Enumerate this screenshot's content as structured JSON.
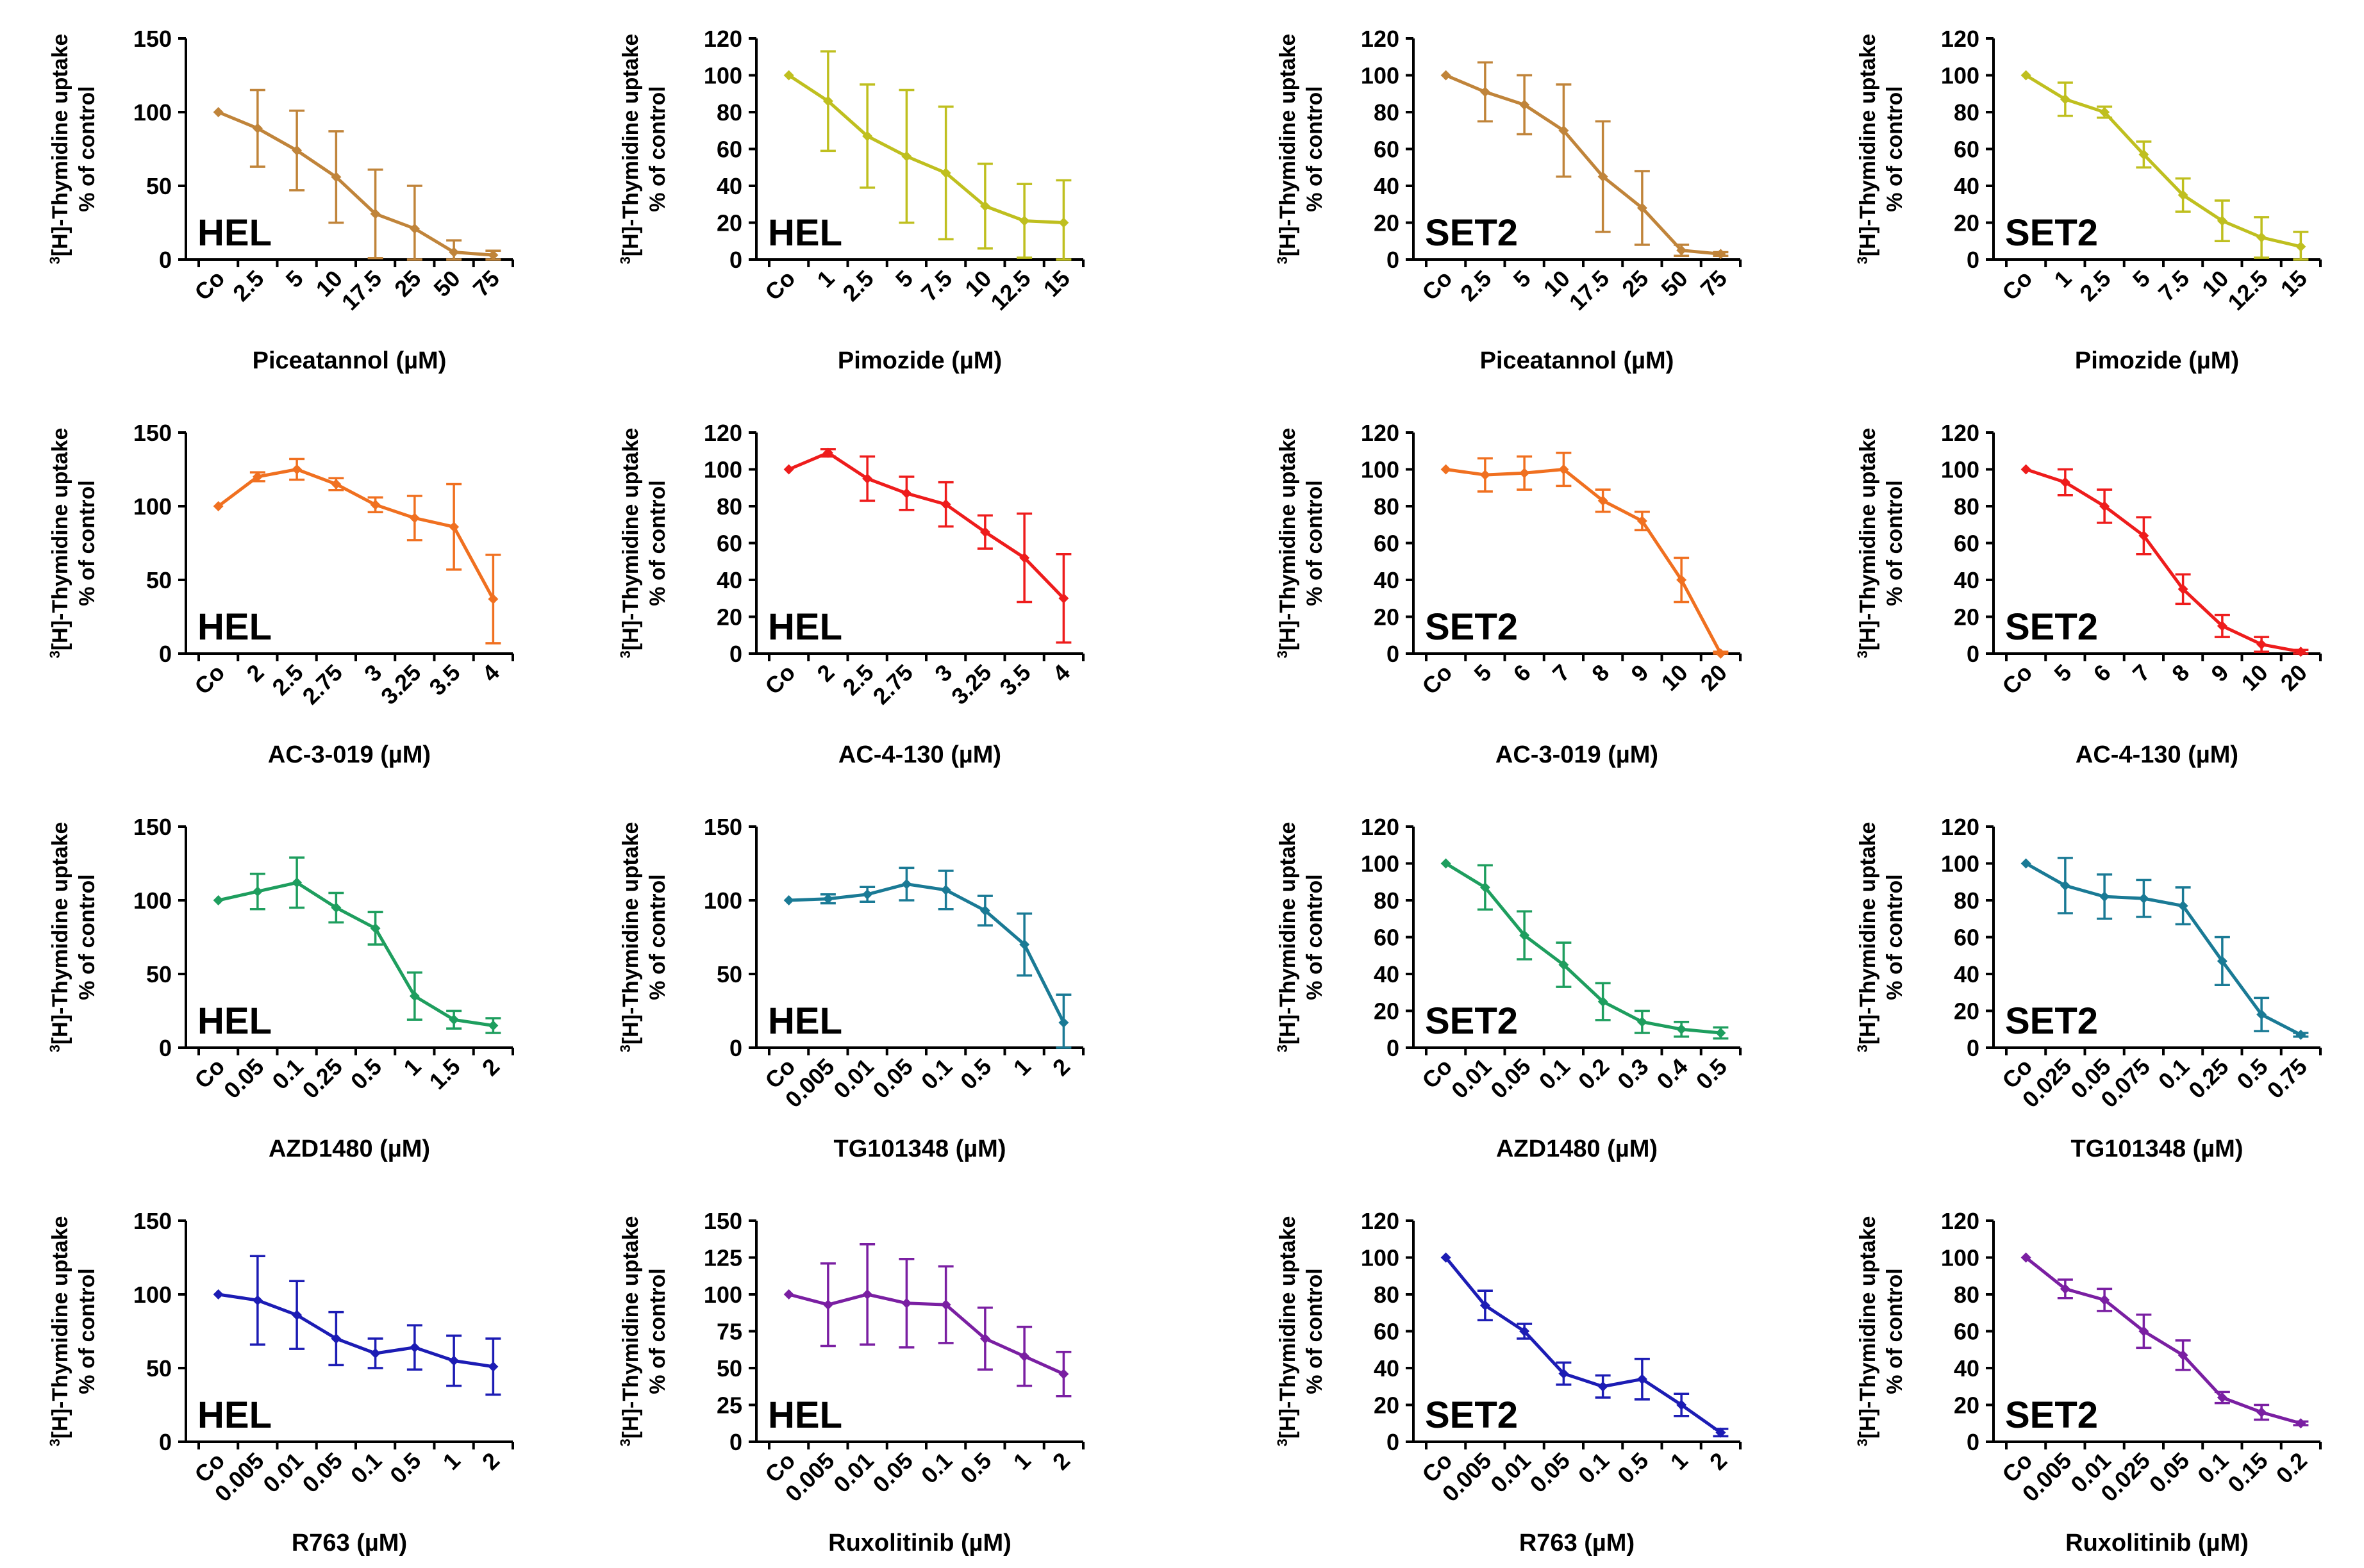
{
  "figure": {
    "ylabel_line1": "[H]-Thymidine uptake",
    "ylabel_sup": "3",
    "ylabel_line2": "% of control"
  },
  "chart_data": [
    {
      "type": "line",
      "cell": "HEL",
      "color": "#C0843A",
      "title": "",
      "xlabel": "Piceatannol (µM)",
      "ylabel": "³[H]-Thymidine uptake % of control",
      "categories": [
        "Co",
        "2.5",
        "5",
        "10",
        "17.5",
        "25",
        "50",
        "75"
      ],
      "values": [
        100,
        89,
        74,
        56,
        31,
        21,
        5,
        3
      ],
      "errors": [
        0,
        26,
        27,
        31,
        30,
        29,
        8,
        3
      ],
      "ylim": [
        0,
        150
      ],
      "yticks": [
        0,
        50,
        100,
        150
      ]
    },
    {
      "type": "line",
      "cell": "HEL",
      "color": "#BFBF1F",
      "title": "",
      "xlabel": "Pimozide (µM)",
      "ylabel": "³[H]-Thymidine uptake % of control",
      "categories": [
        "Co",
        "1",
        "2.5",
        "5",
        "7.5",
        "10",
        "12.5",
        "15"
      ],
      "values": [
        100,
        86,
        67,
        56,
        47,
        29,
        21,
        20
      ],
      "errors": [
        0,
        27,
        28,
        36,
        36,
        23,
        20,
        23
      ],
      "ylim": [
        0,
        120
      ],
      "yticks": [
        0,
        20,
        40,
        60,
        80,
        100,
        120
      ]
    },
    {
      "type": "line",
      "cell": "SET2",
      "color": "#C0843A",
      "title": "",
      "xlabel": "Piceatannol (µM)",
      "ylabel": "³[H]-Thymidine uptake % of control",
      "categories": [
        "Co",
        "2.5",
        "5",
        "10",
        "17.5",
        "25",
        "50",
        "75"
      ],
      "values": [
        100,
        91,
        84,
        70,
        45,
        28,
        5,
        3
      ],
      "errors": [
        0,
        16,
        16,
        25,
        30,
        20,
        3,
        1
      ],
      "ylim": [
        0,
        120
      ],
      "yticks": [
        0,
        20,
        40,
        60,
        80,
        100,
        120
      ]
    },
    {
      "type": "line",
      "cell": "SET2",
      "color": "#BFBF1F",
      "title": "",
      "xlabel": "Pimozide (µM)",
      "ylabel": "³[H]-Thymidine uptake % of control",
      "categories": [
        "Co",
        "1",
        "2.5",
        "5",
        "7.5",
        "10",
        "12.5",
        "15"
      ],
      "values": [
        100,
        87,
        80,
        57,
        35,
        21,
        12,
        7
      ],
      "errors": [
        0,
        9,
        3,
        7,
        9,
        11,
        11,
        8
      ],
      "ylim": [
        0,
        120
      ],
      "yticks": [
        0,
        20,
        40,
        60,
        80,
        100,
        120
      ]
    },
    {
      "type": "line",
      "cell": "HEL",
      "color": "#F07020",
      "title": "",
      "xlabel": "AC-3-019 (µM)",
      "ylabel": "³[H]-Thymidine uptake % of control",
      "categories": [
        "Co",
        "2",
        "2.5",
        "2.75",
        "3",
        "3.25",
        "3.5",
        "4"
      ],
      "values": [
        100,
        120,
        125,
        115,
        101,
        92,
        86,
        37
      ],
      "errors": [
        0,
        3,
        7,
        4,
        5,
        15,
        29,
        30
      ],
      "ylim": [
        0,
        150
      ],
      "yticks": [
        0,
        50,
        100,
        150
      ]
    },
    {
      "type": "line",
      "cell": "HEL",
      "color": "#EE1C1C",
      "title": "",
      "xlabel": "AC-4-130 (µM)",
      "ylabel": "³[H]-Thymidine uptake % of control",
      "categories": [
        "Co",
        "2",
        "2.5",
        "2.75",
        "3",
        "3.25",
        "3.5",
        "4"
      ],
      "values": [
        100,
        109,
        95,
        87,
        81,
        66,
        52,
        30
      ],
      "errors": [
        0,
        2,
        12,
        9,
        12,
        9,
        24,
        24
      ],
      "ylim": [
        0,
        120
      ],
      "yticks": [
        0,
        20,
        40,
        60,
        80,
        100,
        120
      ]
    },
    {
      "type": "line",
      "cell": "SET2",
      "color": "#F07020",
      "title": "",
      "xlabel": "AC-3-019 (µM)",
      "ylabel": "³[H]-Thymidine uptake % of control",
      "categories": [
        "Co",
        "5",
        "6",
        "7",
        "8",
        "9",
        "10",
        "20"
      ],
      "values": [
        100,
        97,
        98,
        100,
        83,
        72,
        40,
        0
      ],
      "errors": [
        0,
        9,
        9,
        9,
        6,
        5,
        12,
        1
      ],
      "ylim": [
        0,
        120
      ],
      "yticks": [
        0,
        20,
        40,
        60,
        80,
        100,
        120
      ]
    },
    {
      "type": "line",
      "cell": "SET2",
      "color": "#EE1C1C",
      "title": "",
      "xlabel": "AC-4-130 (µM)",
      "ylabel": "³[H]-Thymidine uptake % of control",
      "categories": [
        "Co",
        "5",
        "6",
        "7",
        "8",
        "9",
        "10",
        "20"
      ],
      "values": [
        100,
        93,
        80,
        64,
        35,
        15,
        5,
        1
      ],
      "errors": [
        0,
        7,
        9,
        10,
        8,
        6,
        4,
        1
      ],
      "ylim": [
        0,
        120
      ],
      "yticks": [
        0,
        20,
        40,
        60,
        80,
        100,
        120
      ]
    },
    {
      "type": "line",
      "cell": "HEL",
      "color": "#1E9E5E",
      "title": "",
      "xlabel": "AZD1480 (µM)",
      "ylabel": "³[H]-Thymidine uptake % of control",
      "categories": [
        "Co",
        "0.05",
        "0.1",
        "0.25",
        "0.5",
        "1",
        "1.5",
        "2"
      ],
      "values": [
        100,
        106,
        112,
        95,
        81,
        35,
        19,
        15
      ],
      "errors": [
        0,
        12,
        17,
        10,
        11,
        16,
        6,
        5
      ],
      "ylim": [
        0,
        150
      ],
      "yticks": [
        0,
        50,
        100,
        150
      ]
    },
    {
      "type": "line",
      "cell": "HEL",
      "color": "#1A7A95",
      "title": "",
      "xlabel": "TG101348 (µM)",
      "ylabel": "³[H]-Thymidine uptake % of control",
      "categories": [
        "Co",
        "0.005",
        "0.01",
        "0.05",
        "0.1",
        "0.5",
        "1",
        "2"
      ],
      "values": [
        100,
        101,
        104,
        111,
        107,
        93,
        70,
        17
      ],
      "errors": [
        0,
        3,
        5,
        11,
        13,
        10,
        21,
        19
      ],
      "ylim": [
        0,
        150
      ],
      "yticks": [
        0,
        50,
        100,
        150
      ]
    },
    {
      "type": "line",
      "cell": "SET2",
      "color": "#1E9E5E",
      "title": "",
      "xlabel": "AZD1480 (µM)",
      "ylabel": "³[H]-Thymidine uptake % of control",
      "categories": [
        "Co",
        "0.01",
        "0.05",
        "0.1",
        "0.2",
        "0.3",
        "0.4",
        "0.5"
      ],
      "values": [
        100,
        87,
        61,
        45,
        25,
        14,
        10,
        8
      ],
      "errors": [
        0,
        12,
        13,
        12,
        10,
        6,
        4,
        3
      ],
      "ylim": [
        0,
        120
      ],
      "yticks": [
        0,
        20,
        40,
        60,
        80,
        100,
        120
      ]
    },
    {
      "type": "line",
      "cell": "SET2",
      "color": "#1A7A95",
      "title": "",
      "xlabel": "TG101348 (µM)",
      "ylabel": "³[H]-Thymidine uptake % of control",
      "categories": [
        "Co",
        "0.025",
        "0.05",
        "0.075",
        "0.1",
        "0.25",
        "0.5",
        "0.75"
      ],
      "values": [
        100,
        88,
        82,
        81,
        77,
        47,
        18,
        7
      ],
      "errors": [
        0,
        15,
        12,
        10,
        10,
        13,
        9,
        1
      ],
      "ylim": [
        0,
        120
      ],
      "yticks": [
        0,
        20,
        40,
        60,
        80,
        100,
        120
      ]
    },
    {
      "type": "line",
      "cell": "HEL",
      "color": "#1C1CB4",
      "title": "",
      "xlabel": "R763 (µM)",
      "ylabel": "³[H]-Thymidine uptake % of control",
      "categories": [
        "Co",
        "0.005",
        "0.01",
        "0.05",
        "0.1",
        "0.5",
        "1",
        "2"
      ],
      "values": [
        100,
        96,
        86,
        70,
        60,
        64,
        55,
        51
      ],
      "errors": [
        0,
        30,
        23,
        18,
        10,
        15,
        17,
        19
      ],
      "ylim": [
        0,
        150
      ],
      "yticks": [
        0,
        50,
        100,
        150
      ]
    },
    {
      "type": "line",
      "cell": "HEL",
      "color": "#7A1FA2",
      "title": "",
      "xlabel": "Ruxolitinib (µM)",
      "ylabel": "³[H]-Thymidine uptake % of control",
      "categories": [
        "Co",
        "0.005",
        "0.01",
        "0.05",
        "0.1",
        "0.5",
        "1",
        "2"
      ],
      "values": [
        100,
        93,
        100,
        94,
        93,
        70,
        58,
        46
      ],
      "errors": [
        0,
        28,
        34,
        30,
        26,
        21,
        20,
        15
      ],
      "ylim": [
        0,
        150
      ],
      "yticks": [
        0,
        25,
        50,
        75,
        100,
        125,
        150
      ]
    },
    {
      "type": "line",
      "cell": "SET2",
      "color": "#1C1CB4",
      "title": "",
      "xlabel": "R763 (µM)",
      "ylabel": "³[H]-Thymidine uptake % of control",
      "categories": [
        "Co",
        "0.005",
        "0.01",
        "0.05",
        "0.1",
        "0.5",
        "1",
        "2"
      ],
      "values": [
        100,
        74,
        60,
        37,
        30,
        34,
        20,
        5
      ],
      "errors": [
        0,
        8,
        4,
        6,
        6,
        11,
        6,
        2
      ],
      "ylim": [
        0,
        120
      ],
      "yticks": [
        0,
        20,
        40,
        60,
        80,
        100,
        120
      ]
    },
    {
      "type": "line",
      "cell": "SET2",
      "color": "#7A1FA2",
      "title": "",
      "xlabel": "Ruxolitinib (µM)",
      "ylabel": "³[H]-Thymidine uptake % of control",
      "categories": [
        "Co",
        "0.005",
        "0.01",
        "0.025",
        "0.05",
        "0.1",
        "0.15",
        "0.2"
      ],
      "values": [
        100,
        83,
        77,
        60,
        47,
        24,
        16,
        10
      ],
      "errors": [
        0,
        5,
        6,
        9,
        8,
        3,
        4,
        1
      ],
      "ylim": [
        0,
        120
      ],
      "yticks": [
        0,
        20,
        40,
        60,
        80,
        100,
        120
      ]
    }
  ]
}
